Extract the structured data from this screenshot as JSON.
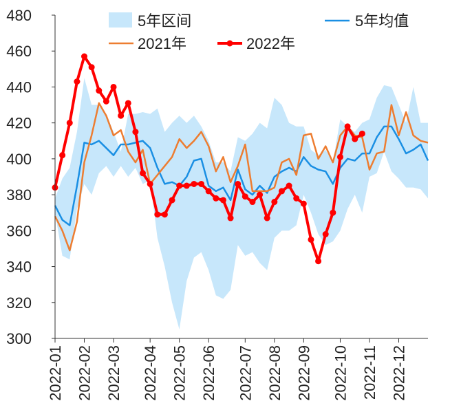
{
  "chart_data": {
    "type": "line",
    "categories": [
      "2022-01",
      null,
      null,
      null,
      "2022-02",
      null,
      null,
      null,
      "2022-03",
      null,
      null,
      null,
      null,
      "2022-04",
      null,
      null,
      null,
      "2022-05",
      null,
      null,
      null,
      "2022-06",
      null,
      null,
      null,
      null,
      "2022-07",
      null,
      null,
      null,
      "2022-08",
      null,
      null,
      null,
      "2022-09",
      null,
      null,
      null,
      null,
      "2022-10",
      null,
      null,
      null,
      "2022-11",
      null,
      null,
      null,
      "2022-12",
      null,
      null,
      null,
      null
    ],
    "ylim": [
      300,
      480
    ],
    "yticks": [
      300,
      320,
      340,
      360,
      380,
      400,
      420,
      440,
      460,
      480
    ],
    "grid": false,
    "series": [
      {
        "name": "5年区间",
        "color": "#c7e7fb",
        "high": [
          378,
          389,
          395,
          415,
          445,
          430,
          430,
          425,
          415,
          404,
          425,
          425,
          426,
          425,
          428,
          415,
          420,
          424,
          420,
          424,
          418,
          410,
          398,
          398,
          393,
          412,
          410,
          414,
          420,
          417,
          434,
          430,
          420,
          418,
          418,
          405,
          402,
          405,
          398,
          422,
          418,
          415,
          420,
          422,
          434,
          441,
          440,
          430,
          420,
          440,
          420,
          420
        ],
        "low": [
          370,
          346,
          344,
          372,
          386,
          380,
          392,
          396,
          390,
          396,
          390,
          395,
          386,
          388,
          356,
          340,
          320,
          305,
          332,
          345,
          348,
          338,
          324,
          322,
          327,
          352,
          346,
          348,
          342,
          338,
          356,
          360,
          360,
          363,
          380,
          370,
          358,
          352,
          354,
          360,
          372,
          380,
          370,
          390,
          392,
          404,
          393,
          389,
          384,
          384,
          383,
          378
        ]
      },
      {
        "name": "5年均值",
        "color": "#1a8fe3",
        "values": [
          374,
          366,
          363,
          385,
          409,
          408,
          410,
          406,
          402,
          408,
          408,
          409,
          410,
          406,
          395,
          386,
          387,
          385,
          390,
          399,
          400,
          385,
          382,
          384,
          377,
          394,
          383,
          380,
          385,
          381,
          390,
          393,
          395,
          393,
          401,
          396,
          394,
          393,
          386,
          395,
          400,
          399,
          403,
          403,
          412,
          418,
          418,
          411,
          403,
          405,
          408,
          399
        ]
      },
      {
        "name": "2021年",
        "color": "#ed7d31",
        "values": [
          368,
          360,
          349,
          365,
          398,
          413,
          431,
          424,
          413,
          416,
          404,
          398,
          405,
          386,
          391,
          396,
          401,
          411,
          406,
          410,
          415,
          407,
          393,
          401,
          387,
          396,
          408,
          382,
          382,
          382,
          384,
          398,
          400,
          391,
          413,
          414,
          400,
          407,
          398,
          413,
          418,
          413,
          412,
          394,
          403,
          404,
          430,
          413,
          426,
          413,
          410,
          409
        ]
      },
      {
        "name": "2022年",
        "color": "#ff0000",
        "values": [
          384,
          402,
          420,
          443,
          457,
          451,
          438,
          432,
          440,
          424,
          431,
          415,
          392,
          386,
          369,
          369,
          377,
          385,
          385,
          386,
          386,
          382,
          378,
          377,
          367,
          386,
          379,
          376,
          380,
          367,
          376,
          382,
          385,
          378,
          375,
          355,
          343,
          358,
          370,
          401,
          418,
          411,
          414,
          null,
          null,
          null,
          null,
          null,
          null,
          null,
          null,
          null
        ]
      }
    ]
  }
}
